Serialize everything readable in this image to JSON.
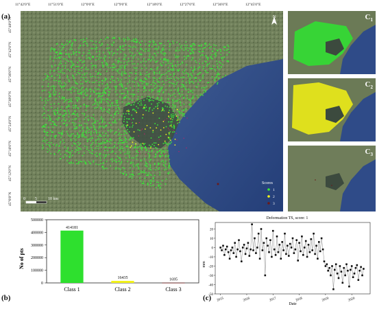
{
  "panel_a": {
    "label": "(a)",
    "top_coords": [
      "11°42'0\"E",
      "11°51'0\"E",
      "12°0'0\"E",
      "12°9'0\"E",
      "12°18'0\"E",
      "12°27'0\"E",
      "12°36'0\"E",
      "12°45'0\"E"
    ],
    "left_coords": [
      "45°48'0\"N",
      "45°42'0\"N",
      "45°36'0\"N",
      "45°30'0\"N",
      "45°24'0\"N",
      "45°18'0\"N",
      "45°12'0\"N",
      "45°6'0\"N"
    ],
    "north_arrow": "N",
    "scale_bar": {
      "labels": [
        "0",
        "5",
        "10 km"
      ]
    },
    "legend": {
      "title": "Scores",
      "items": [
        {
          "label": "1",
          "color": "#39e639"
        },
        {
          "label": "2",
          "color": "#f5f51b"
        },
        {
          "label": "3",
          "color": "#6b1a1a"
        }
      ]
    },
    "colors": {
      "class1": "#39e639",
      "class2": "#f5f51b",
      "class3": "#6b1a1a",
      "sea": "#2d4a86"
    }
  },
  "insets": [
    {
      "label": "C",
      "sub": "1"
    },
    {
      "label": "C",
      "sub": "2"
    },
    {
      "label": "C",
      "sub": "3"
    }
  ],
  "panel_b": {
    "label": "(b)",
    "chart_data": {
      "type": "bar",
      "categories": [
        "Class 1",
        "Class 2",
        "Class 3"
      ],
      "values": [
        414181,
        16435,
        1695
      ],
      "value_labels": [
        "414181",
        "16435",
        "1695"
      ],
      "ylabel": "No of pts",
      "ylim": [
        0,
        500000
      ],
      "yticks": [
        "0",
        "100000",
        "200000",
        "300000",
        "400000",
        "500000"
      ],
      "colors": [
        "#2ee02e",
        "#f2f21b",
        "#6b1a1a"
      ]
    }
  },
  "panel_c": {
    "label": "(c)",
    "chart_data": {
      "type": "line",
      "title": "Deformation TS, score: 1",
      "xlabel": "Date",
      "ylabel": "mm",
      "xticks": [
        "2015",
        "2016",
        "2017",
        "2018",
        "2019",
        "2020"
      ],
      "yticks": [
        "20",
        "10",
        "0",
        "-10",
        "-20",
        "-30",
        "-40",
        "-50"
      ],
      "xlim": [
        2014.8,
        2020.7
      ],
      "ylim": [
        -50,
        27
      ],
      "series": [
        {
          "x": [
            2015.0,
            2015.05,
            2015.1,
            2015.15,
            2015.2,
            2015.25,
            2015.3,
            2015.35,
            2015.4,
            2015.45,
            2015.5,
            2015.55,
            2015.6,
            2015.65,
            2015.7,
            2015.75,
            2015.8,
            2015.85,
            2015.9,
            2015.95,
            2016.0,
            2016.05,
            2016.1,
            2016.15,
            2016.2,
            2016.25,
            2016.3,
            2016.35,
            2016.4,
            2016.45,
            2016.5,
            2016.55,
            2016.6,
            2016.65,
            2016.7,
            2016.75,
            2016.8,
            2016.85,
            2016.9,
            2016.95,
            2017.0,
            2017.05,
            2017.1,
            2017.15,
            2017.2,
            2017.25,
            2017.3,
            2017.35,
            2017.4,
            2017.45,
            2017.5,
            2017.55,
            2017.6,
            2017.65,
            2017.7,
            2017.75,
            2017.8,
            2017.85,
            2017.9,
            2017.95,
            2018.0,
            2018.05,
            2018.1,
            2018.15,
            2018.2,
            2018.25,
            2018.3,
            2018.35,
            2018.4,
            2018.45,
            2018.5,
            2018.55,
            2018.6,
            2018.65,
            2018.7,
            2018.75,
            2018.8,
            2018.85,
            2018.9,
            2018.95,
            2019.0,
            2019.05,
            2019.1,
            2019.15,
            2019.2,
            2019.25,
            2019.3,
            2019.35,
            2019.4,
            2019.45,
            2019.5,
            2019.55,
            2019.6,
            2019.65,
            2019.7,
            2019.75,
            2019.8,
            2019.85,
            2019.9,
            2019.95,
            2020.0,
            2020.05,
            2020.1,
            2020.15,
            2020.2,
            2020.25,
            2020.3,
            2020.35,
            2020.4,
            2020.45
          ],
          "y": [
            0,
            -3,
            2,
            -8,
            -2,
            1,
            -5,
            -12,
            -3,
            0,
            -6,
            5,
            -10,
            -2,
            8,
            -4,
            -15,
            0,
            3,
            -7,
            -1,
            5,
            -9,
            -2,
            25,
            -3,
            10,
            -6,
            0,
            15,
            -12,
            20,
            -3,
            5,
            -30,
            10,
            2,
            -5,
            8,
            -10,
            18,
            -2,
            -8,
            12,
            -5,
            3,
            -12,
            6,
            -3,
            15,
            -7,
            2,
            -9,
            4,
            0,
            10,
            -6,
            -2,
            8,
            -14,
            5,
            -4,
            12,
            -8,
            0,
            7,
            -10,
            3,
            -5,
            9,
            -3,
            15,
            -7,
            2,
            -12,
            6,
            -4,
            10,
            -2,
            -15,
            -20,
            -18,
            -25,
            -22,
            -30,
            -20,
            -45,
            -24,
            -18,
            -28,
            -33,
            -20,
            -26,
            -38,
            -22,
            -30,
            -18,
            -25,
            -42,
            -24,
            -20,
            -32,
            -28,
            -22,
            -19,
            -35,
            -25,
            -21,
            -30,
            -23
          ]
        }
      ]
    }
  }
}
